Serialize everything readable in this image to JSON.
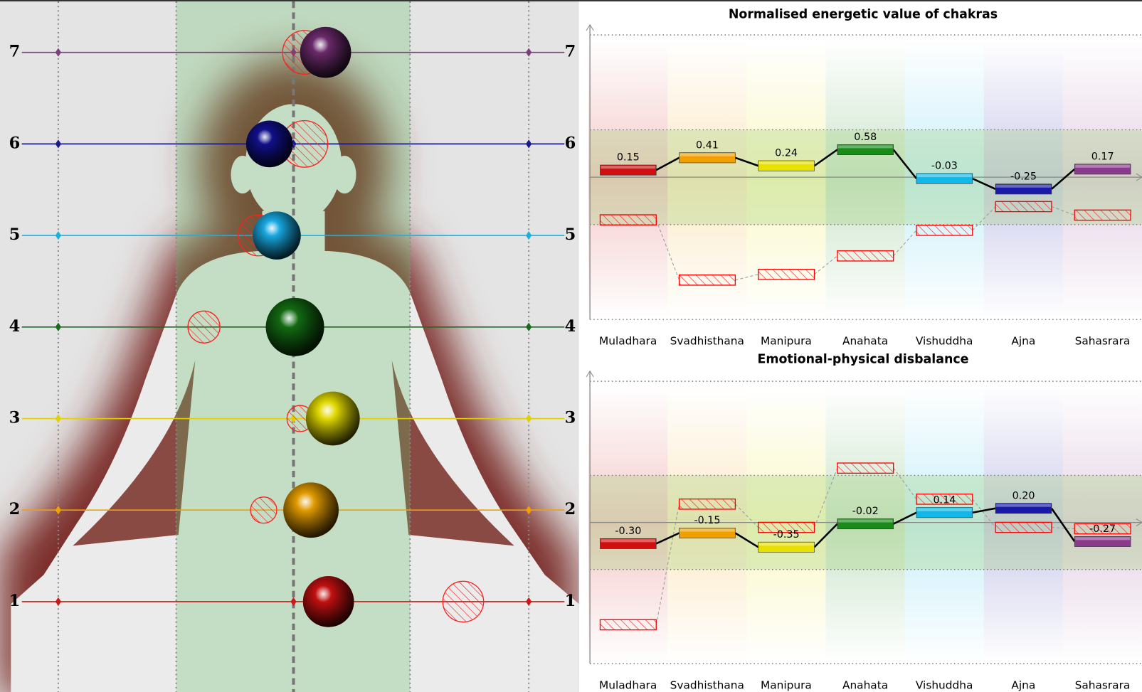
{
  "figure": {
    "levels": [
      7,
      6,
      5,
      4,
      3,
      2,
      1
    ]
  },
  "chart_data": [
    {
      "type": "bar",
      "title": "Normalised energetic value of chakras",
      "categories": [
        "Muladhara",
        "Svadhisthana",
        "Manipura",
        "Anahata",
        "Vishuddha",
        "Ajna",
        "Sahasrara"
      ],
      "values": [
        0.15,
        0.41,
        0.24,
        0.58,
        -0.03,
        -0.25,
        0.17
      ],
      "colors": [
        "#d01010",
        "#f0a000",
        "#e8e000",
        "#1a8a1a",
        "#10b8e8",
        "#1a1aa8",
        "#8a3a8a"
      ],
      "reference_values": [
        -0.9,
        -2.17,
        -2.05,
        -1.66,
        -1.12,
        -0.62,
        -0.8
      ],
      "reference_color": "#ff0000",
      "ylim": [
        -3,
        3
      ]
    },
    {
      "type": "bar",
      "title": "Emotional-physical disbalance",
      "categories": [
        "Muladhara",
        "Svadhisthana",
        "Manipura",
        "Anahata",
        "Vishuddha",
        "Ajna",
        "Sahasrara"
      ],
      "values": [
        -0.3,
        -0.15,
        -0.35,
        -0.02,
        0.14,
        0.2,
        -0.27
      ],
      "value_labels": [
        "-0.30",
        "-0.15",
        "-0.35",
        "-0.02",
        "0.14",
        "0.20",
        "-0.27"
      ],
      "colors": [
        "#d01010",
        "#f0a000",
        "#e8e000",
        "#1a8a1a",
        "#10b8e8",
        "#1a1aa8",
        "#8a3a8a"
      ],
      "reference_values": [
        -1.45,
        0.26,
        -0.07,
        0.77,
        0.33,
        -0.07,
        -0.09
      ],
      "reference_color": "#ff0000",
      "ylim": [
        -2,
        2
      ]
    }
  ]
}
